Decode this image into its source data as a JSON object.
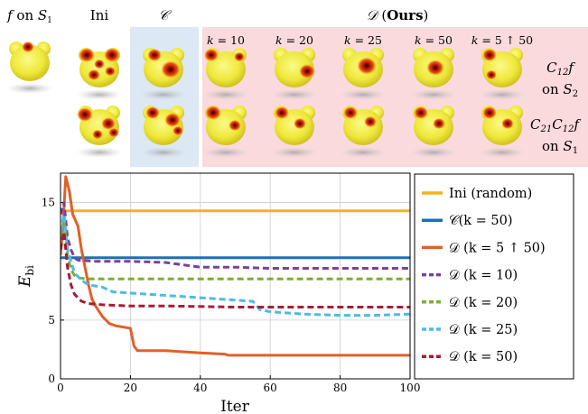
{
  "figure": {
    "col_headers": [
      {
        "html": "<tspan font-style=\"italic\">f</tspan> on <tspan font-style=\"italic\">S</tspan><tspan font-size=\"9\" dy=\"3\">1</tspan>"
      },
      {
        "html": "Ini"
      },
      {
        "html": "<tspan font-style=\"italic\" font-family=\"DejaVu Serif\">𝒞</tspan>"
      },
      {
        "html": "<tspan font-style=\"italic\">𝒟</tspan> (<tspan font-weight=\"bold\">Ours</tspan>)"
      }
    ],
    "k_labels": [
      "k = 10",
      "k = 20",
      "k = 25",
      "k = 50",
      "k = 5 ↑ 50"
    ],
    "row_labels": [
      [
        "C₁₂f",
        "on S₂"
      ],
      [
        "C₂₁C₁₂f",
        "on S₁"
      ]
    ],
    "colors": {
      "C_panel_bg": "#dce8f4",
      "D_panel_bg": "#fadadd",
      "shape_yellow": "#f2ef4a",
      "shape_red": "#cc1a10",
      "shape_dark": "#2a0a05"
    }
  },
  "chart_data": {
    "type": "line",
    "xlabel": "Iter",
    "ylabel": "E_bi",
    "xlim": [
      0,
      100
    ],
    "ylim": [
      0,
      17.5
    ],
    "xticks": [
      0,
      20,
      40,
      60,
      80,
      100
    ],
    "yticks": [
      0,
      5,
      15
    ],
    "grid": true,
    "legend_position": "right",
    "series": [
      {
        "name": "Ini (random)",
        "color": "#f0b323",
        "dash": "solid",
        "x": [
          0,
          100
        ],
        "y": [
          14.3,
          14.3
        ]
      },
      {
        "name": "𝒞(k = 50)",
        "color": "#1f6fb4",
        "dash": "solid",
        "x": [
          0,
          100
        ],
        "y": [
          10.3,
          10.3
        ]
      },
      {
        "name": "𝒟 (k = 5 ↑ 50)",
        "color": "#e0602a",
        "dash": "solid",
        "x": [
          0,
          0.7,
          1.5,
          2.5,
          3.5,
          5,
          6,
          7,
          8,
          9,
          10,
          12,
          14,
          16,
          18,
          20,
          21,
          22,
          25,
          30,
          40,
          47,
          48,
          60,
          80,
          100
        ],
        "y": [
          10.5,
          13,
          17.2,
          16,
          14,
          13,
          11,
          9.5,
          8,
          6.8,
          6.2,
          5.3,
          4.7,
          4.5,
          4.4,
          4.3,
          2.8,
          2.4,
          2.4,
          2.4,
          2.2,
          2.1,
          2.0,
          2.0,
          2.0,
          2.0
        ]
      },
      {
        "name": "𝒟 (k = 10)",
        "color": "#7b3fa0",
        "dash": "dashed",
        "x": [
          0,
          1,
          2,
          3,
          4,
          5,
          10,
          20,
          30,
          40,
          50,
          60,
          70,
          80,
          100
        ],
        "y": [
          14,
          15,
          12,
          11,
          10.3,
          10.1,
          10.0,
          10.0,
          9.9,
          9.5,
          9.5,
          9.4,
          9.4,
          9.4,
          9.4
        ]
      },
      {
        "name": "𝒟 (k = 20)",
        "color": "#7cae2e",
        "dash": "dashed",
        "x": [
          0,
          1,
          2,
          3,
          4,
          5,
          8,
          15,
          30,
          50,
          70,
          100
        ],
        "y": [
          12,
          13.5,
          10.5,
          9.3,
          8.8,
          8.6,
          8.5,
          8.5,
          8.5,
          8.5,
          8.5,
          8.5
        ]
      },
      {
        "name": "𝒟 (k = 25)",
        "color": "#4cbbe8",
        "dash": "dashed",
        "x": [
          0,
          1,
          2,
          3,
          4,
          6,
          8,
          12,
          15,
          25,
          30,
          40,
          50,
          55,
          57,
          60,
          70,
          80,
          90,
          100
        ],
        "y": [
          12.5,
          14,
          11,
          10,
          9,
          8.4,
          8.0,
          7.8,
          7.4,
          7.2,
          7.1,
          6.9,
          6.7,
          6.6,
          5.9,
          5.7,
          5.5,
          5.4,
          5.4,
          5.5
        ]
      },
      {
        "name": "𝒟 (k = 50)",
        "color": "#a61c36",
        "dash": "dashed",
        "x": [
          0,
          1,
          2,
          3,
          4,
          5,
          6,
          8,
          12,
          20,
          30,
          50,
          70,
          100
        ],
        "y": [
          11,
          12.5,
          9.5,
          8,
          7.2,
          6.9,
          6.6,
          6.4,
          6.3,
          6.2,
          6.2,
          6.1,
          6.1,
          6.1
        ]
      }
    ]
  }
}
